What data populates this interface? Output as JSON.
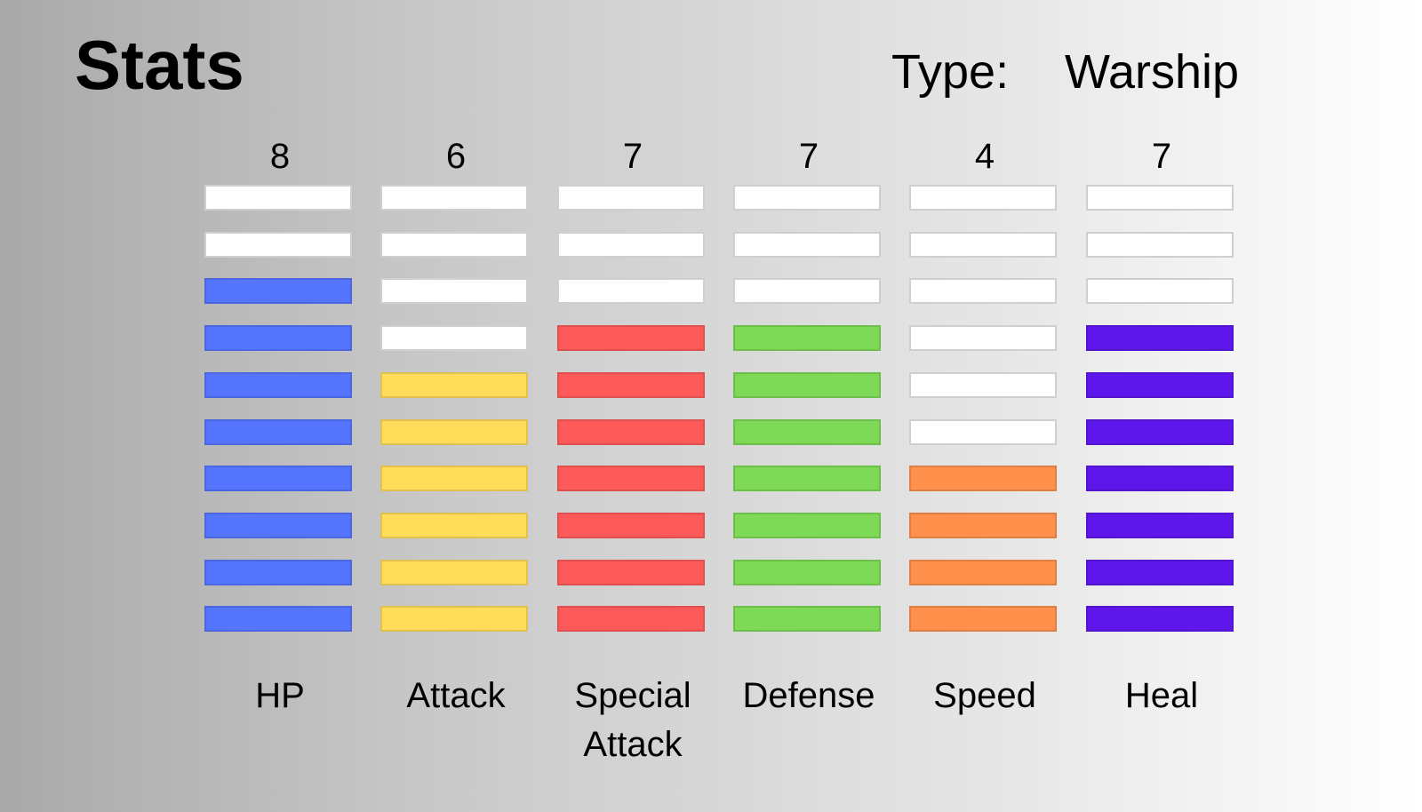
{
  "title": "Stats",
  "type_label": "Type:",
  "type_value": "Warship",
  "chart_data": {
    "type": "bar",
    "max_segments": 10,
    "categories": [
      "HP",
      "Attack",
      "Special Attack",
      "Defense",
      "Speed",
      "Heal"
    ],
    "display_labels": [
      "HP",
      "Attack",
      "Special\nAttack",
      "Defense",
      "Speed",
      "Heal"
    ],
    "values": [
      8,
      6,
      7,
      7,
      4,
      7
    ],
    "value_labels": [
      "8",
      "6",
      "7",
      "7",
      "4",
      "7"
    ],
    "colors": [
      "#5575ff",
      "#ffdc5a",
      "#ff5a5a",
      "#7ed957",
      "#ff914d",
      "#5e17eb"
    ],
    "empty_color": "#ffffff"
  }
}
